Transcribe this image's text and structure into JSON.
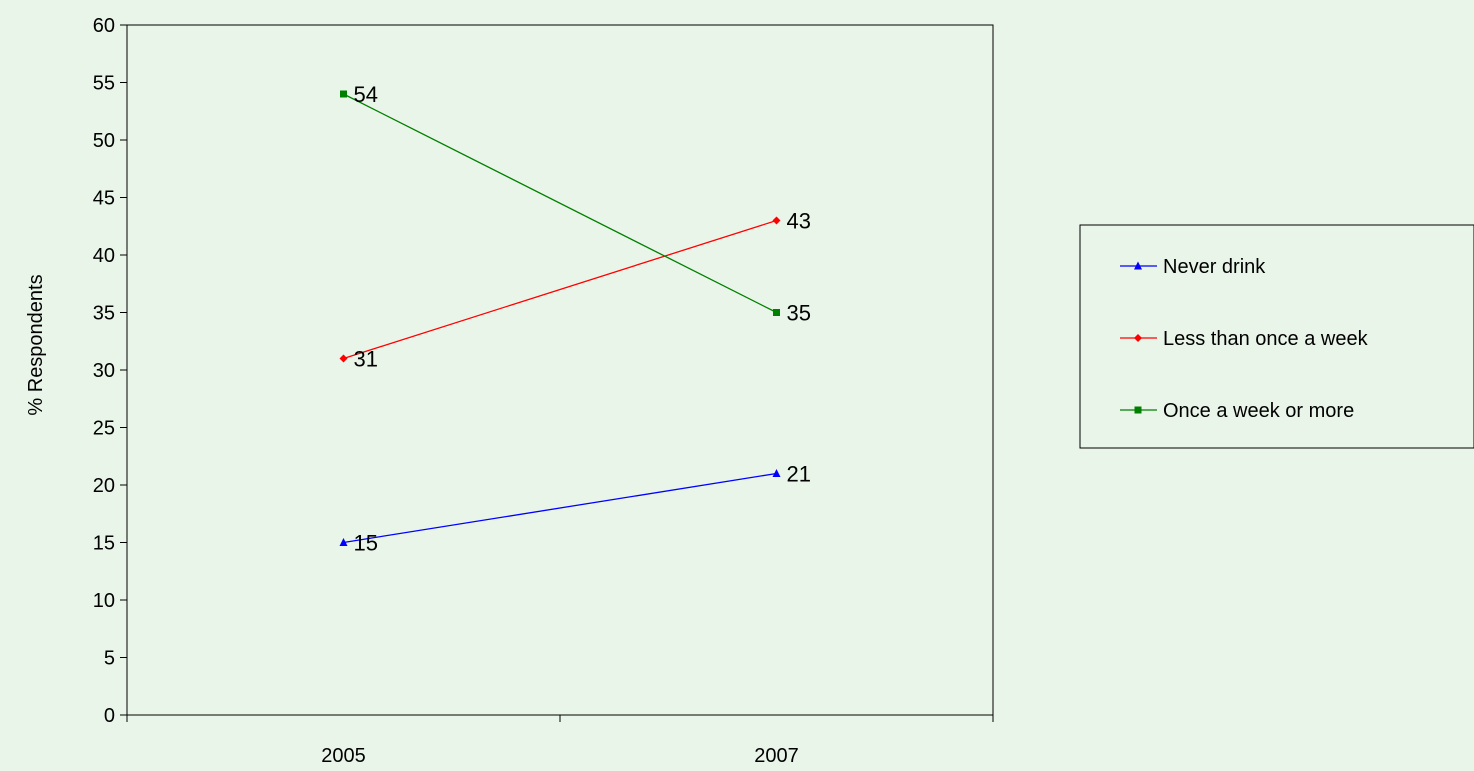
{
  "chart_data": {
    "type": "line",
    "title": "",
    "xlabel": "",
    "ylabel": "% Respondents",
    "categories": [
      "2005",
      "2007"
    ],
    "ylim": [
      0,
      60
    ],
    "ytick_step": 5,
    "grid": false,
    "legend_position": "right",
    "series": [
      {
        "name": "Never drink",
        "values": [
          15,
          21
        ],
        "color": "#0000ff",
        "marker": "triangle"
      },
      {
        "name": "Less than once a week",
        "values": [
          31,
          43
        ],
        "color": "#ff0000",
        "marker": "diamond"
      },
      {
        "name": "Once a week or more",
        "values": [
          54,
          35
        ],
        "color": "#008000",
        "marker": "square"
      }
    ]
  }
}
